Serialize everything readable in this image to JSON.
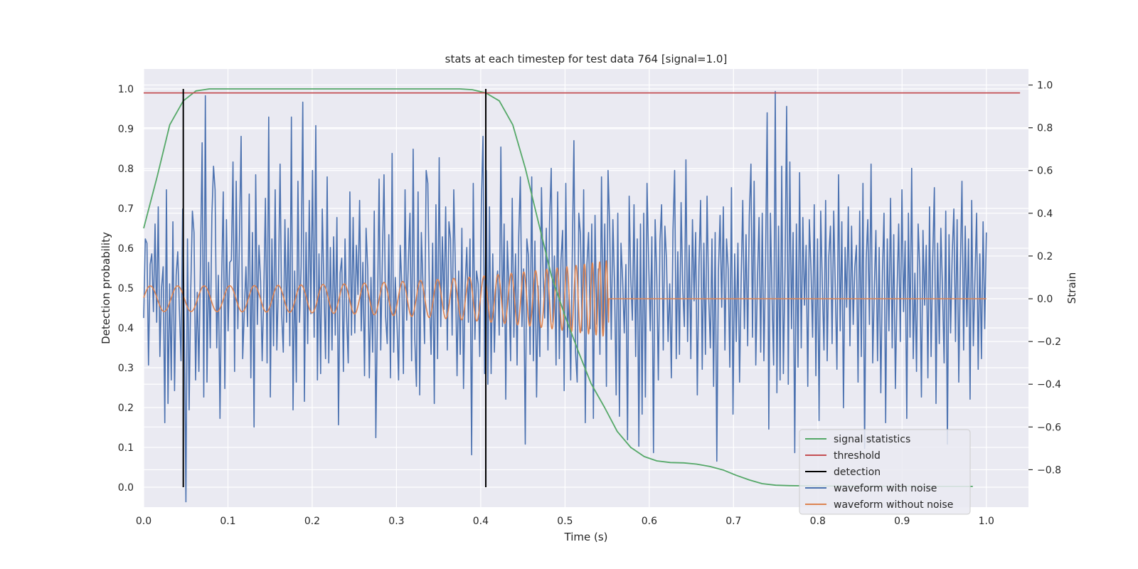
{
  "chart_data": {
    "type": "line",
    "title": "stats at each timestep for test data 764 [signal=1.0]",
    "xlabel": "Time (s)",
    "ylabel_left": "Detection probability",
    "ylabel_right": "Strain",
    "xlim": [
      0.0,
      1.05
    ],
    "ylim_left": [
      -0.05,
      1.05
    ],
    "ylim_right": [
      -0.975,
      1.075
    ],
    "x_ticks": [
      0.0,
      0.1,
      0.2,
      0.3,
      0.4,
      0.5,
      0.6,
      0.7,
      0.8,
      0.9,
      1.0
    ],
    "x_tick_labels": [
      "0.0",
      "0.1",
      "0.2",
      "0.3",
      "0.4",
      "0.5",
      "0.6",
      "0.7",
      "0.8",
      "0.9",
      "1.0"
    ],
    "y_left_ticks": [
      0.0,
      0.1,
      0.2,
      0.3,
      0.4,
      0.5,
      0.6,
      0.7,
      0.8,
      0.9,
      1.0
    ],
    "y_left_tick_labels": [
      "0.0",
      "0.1",
      "0.2",
      "0.3",
      "0.4",
      "0.5",
      "0.6",
      "0.7",
      "0.8",
      "0.9",
      "1.0"
    ],
    "y_right_ticks": [
      -0.8,
      -0.6,
      -0.4,
      -0.2,
      0.0,
      0.2,
      0.4,
      0.6,
      0.8,
      1.0
    ],
    "y_right_tick_labels": [
      "−0.8",
      "−0.6",
      "−0.4",
      "−0.2",
      "0.0",
      "0.2",
      "0.4",
      "0.6",
      "0.8",
      "1.0"
    ],
    "grid": true,
    "legend_position": "lower-right",
    "series": [
      {
        "name": "signal statistics",
        "axis": "left",
        "color": "#55a868",
        "x": [
          0.0,
          0.016,
          0.031,
          0.047,
          0.062,
          0.078,
          0.094,
          0.2,
          0.3,
          0.375,
          0.39,
          0.406,
          0.422,
          0.438,
          0.453,
          0.469,
          0.484,
          0.5,
          0.516,
          0.531,
          0.547,
          0.562,
          0.578,
          0.594,
          0.609,
          0.625,
          0.641,
          0.656,
          0.672,
          0.688,
          0.703,
          0.719,
          0.734,
          0.75,
          0.766,
          0.8,
          0.9,
          0.984
        ],
        "y": [
          0.65,
          0.78,
          0.91,
          0.97,
          0.995,
          1.0,
          1.0,
          1.0,
          1.0,
          1.0,
          0.998,
          0.99,
          0.97,
          0.91,
          0.8,
          0.66,
          0.53,
          0.43,
          0.34,
          0.26,
          0.2,
          0.14,
          0.1,
          0.077,
          0.066,
          0.062,
          0.061,
          0.058,
          0.052,
          0.043,
          0.03,
          0.018,
          0.009,
          0.005,
          0.004,
          0.003,
          0.002,
          0.002
        ]
      },
      {
        "name": "threshold",
        "axis": "left",
        "color": "#c44e52",
        "x": [
          0.0,
          1.04
        ],
        "y": [
          0.99,
          0.99
        ]
      },
      {
        "name": "detection",
        "axis": "left",
        "color": "#000000",
        "segments": [
          {
            "x": 0.047,
            "y0": 0.0,
            "y1": 1.0
          },
          {
            "x": 0.406,
            "y0": 0.0,
            "y1": 1.0
          }
        ]
      },
      {
        "name": "waveform with noise",
        "axis": "right",
        "color": "#4c72b0",
        "x_start": 0.0,
        "x_end": 1.0,
        "y": [
          -0.09,
          0.28,
          0.26,
          -0.31,
          0.16,
          0.21,
          -0.06,
          0.35,
          -0.11,
          0.43,
          -0.27,
          0.05,
          0.15,
          -0.58,
          0.51,
          -0.49,
          0.07,
          -0.38,
          0.36,
          -0.43,
          0.11,
          0.22,
          -0.05,
          -0.29,
          0.42,
          -0.12,
          -0.95,
          0.28,
          -0.52,
          0.04,
          0.41,
          0.31,
          -0.38,
          0.03,
          -0.34,
          0.18,
          0.73,
          -0.46,
          0.95,
          -0.39,
          0.17,
          -0.23,
          0.39,
          0.62,
          0.51,
          -0.23,
          0.11,
          -0.56,
          0.08,
          0.5,
          -0.42,
          0.37,
          -0.15,
          0.17,
          0.18,
          0.64,
          -0.34,
          0.55,
          -0.14,
          0.29,
          0.76,
          -0.28,
          -0.06,
          0.15,
          -0.13,
          0.49,
          -0.37,
          0.31,
          -0.6,
          0.58,
          -0.12,
          0.25,
          0.08,
          -0.29,
          0.03,
          0.47,
          -0.3,
          0.85,
          -0.46,
          0.28,
          -0.22,
          0.51,
          -0.24,
          0.07,
          0.63,
          -0.07,
          -0.25,
          0.37,
          -0.11,
          0.33,
          -0.22,
          0.85,
          -0.52,
          0.13,
          -0.39,
          0.55,
          -0.11,
          0.15,
          0.92,
          -0.48,
          0.31,
          -0.21,
          0.46,
          -0.07,
          0.6,
          -0.18,
          0.81,
          -0.38,
          0.21,
          -0.35,
          0.42,
          0.06,
          -0.28,
          0.57,
          -0.3,
          0.24,
          -0.24,
          0.29,
          -0.17,
          0.38,
          -0.59,
          0.12,
          0.19,
          -0.34,
          0.28,
          -0.08,
          -0.3,
          0.5,
          -0.17,
          0.38,
          -0.16,
          0.25,
          0.02,
          0.46,
          -0.15,
          0.17,
          -0.36,
          0.33,
          0.14,
          -0.37,
          0.1,
          -0.25,
          0.41,
          -0.65,
          -0.06,
          0.56,
          -0.24,
          0.19,
          0.58,
          -0.08,
          -0.21,
          0.3,
          -0.37,
          0.68,
          -0.25,
          0.1,
          -0.11,
          -0.38,
          0.25,
          0.06,
          -0.35,
          0.51,
          -0.1,
          0.17,
          0.4,
          -0.29,
          0.7,
          -0.19,
          -0.41,
          0.5,
          -0.45,
          0.31,
          0.08,
          -0.21,
          0.6,
          0.54,
          0.01,
          -0.26,
          0.26,
          -0.49,
          0.44,
          -0.28,
          0.66,
          -0.13,
          0.29,
          -0.05,
          0.43,
          -0.24,
          0.36,
          0.28,
          -0.17,
          0.51,
          0.13,
          -0.36,
          0.13,
          -0.26,
          0.33,
          -0.42,
          0.06,
          0.24,
          -0.11,
          0.28,
          -0.73,
          0.54,
          -0.19,
          0.13,
          0.07,
          -0.27,
          0.46,
          0.76,
          -0.35,
          0.6,
          -0.4,
          0.43,
          -0.35,
          0.21,
          -0.25,
          0.06,
          0.13,
          -0.17,
          0.71,
          -0.13,
          0.35,
          -0.47,
          0.27,
          0.04,
          -0.29,
          0.47,
          -0.18,
          0.21,
          -0.31,
          0.29,
          0.57,
          -0.13,
          0.14,
          -0.68,
          0.28,
          0.2,
          -0.26,
          0.57,
          -0.29,
          0.27,
          -0.46,
          0.06,
          -0.27,
          0.52,
          0.11,
          -0.09,
          0.33,
          -0.24,
          0.36,
          0.61,
          -0.11,
          0.2,
          -0.31,
          0.5,
          -0.28,
          0.18,
          0.32,
          -0.43,
          0.54,
          -0.18,
          0.02,
          -0.38,
          0.23,
          0.74,
          -0.25,
          -0.39,
          0.4,
          0.3,
          -0.15,
          0.51,
          -0.58,
          0.16,
          0.31,
          -0.14,
          0.35,
          -0.56,
          0.39,
          -0.12,
          0.14,
          -0.26,
          0.57,
          -0.16,
          0.35,
          -0.41,
          0.6,
          0.34,
          -0.19,
          0.37,
          0.07,
          -0.45,
          0.4,
          -0.55,
          0.26,
          0.09,
          -0.16,
          0.16,
          -0.66,
          0.48,
          0.1,
          -0.1,
          0.44,
          -0.27,
          0.28,
          -0.69,
          0.35,
          -0.54,
          0.4,
          -0.46,
          0.54,
          0.19,
          -0.15,
          0.29,
          -0.72,
          0.37,
          0.1,
          -0.38,
          0.27,
          0.44,
          -0.24,
          0.34,
          0.18,
          -0.2,
          0.07,
          -0.37,
          0.32,
          0.6,
          -0.28,
          0.22,
          -0.26,
          0.45,
          0.05,
          -0.13,
          0.65,
          -0.2,
          0.25,
          -0.28,
          0.37,
          -0.01,
          0.31,
          -0.45,
          0.15,
          0.46,
          -0.33,
          0.26,
          -0.26,
          0.48,
          0.01,
          -0.23,
          0.28,
          -0.41,
          0.31,
          -0.76,
          0.13,
          0.39,
          -0.04,
          0.43,
          -0.24,
          0.28,
          0.14,
          -0.32,
          0.52,
          -0.54,
          0.21,
          -0.2,
          0.26,
          -0.39,
          0.1,
          0.46,
          -0.14,
          0.3,
          -0.22,
          0.39,
          0.63,
          -0.18,
          0.55,
          -0.31,
          0.08,
          0.38,
          -0.25,
          0.4,
          -0.29,
          0.16,
          0.87,
          -0.61,
          0.4,
          0.02,
          -0.31,
          0.97,
          -0.44,
          0.34,
          -0.38,
          0.62,
          -0.35,
          0.12,
          0.9,
          -0.4,
          0.64,
          -0.14,
          0.31,
          -0.72,
          0.35,
          -0.32,
          0.59,
          -0.23,
          0.38,
          -0.03,
          0.25,
          -0.41,
          0.37,
          0.14,
          -0.18,
          0.44,
          -0.36,
          0.28,
          -0.57,
          0.41,
          0.06,
          -0.24,
          0.46,
          -0.29,
          0.2,
          0.34,
          -0.21,
          0.41,
          0.03,
          -0.33,
          0.58,
          -0.15,
          0.36,
          -0.51,
          0.24,
          -0.04,
          0.43,
          -0.22,
          0.34,
          -0.12,
          0.15,
          0.25,
          -0.39,
          0.41,
          -0.27,
          0.54,
          -0.7,
          0.18,
          0.37,
          -0.12,
          0.63,
          -0.3,
          0.05,
          0.32,
          -0.29,
          0.24,
          -0.44,
          0.13,
          0.4,
          -0.58,
          0.28,
          -0.15,
          0.47,
          -0.23,
          0.3,
          -0.42,
          0.03,
          0.35,
          -0.2,
          0.51,
          -0.06,
          0.27,
          -0.56,
          0.4,
          -0.18,
          0.61,
          -0.28,
          0.12,
          -0.34,
          0.35,
          0.14,
          -0.46,
          0.32,
          -0.03,
          0.25,
          -0.37,
          0.43,
          -0.27,
          0.19,
          0.52,
          -0.49,
          0.26,
          -0.21,
          0.33,
          0.05,
          -0.3,
          0.41,
          -0.68,
          0.3,
          -0.16,
          0.21,
          0.42,
          -0.2,
          0.37,
          -0.39,
          0.14,
          0.55,
          -0.24,
          0.34,
          -0.13,
          0.28,
          -0.47,
          0.46,
          -0.22,
          0.1,
          0.4,
          -0.33,
          0.21,
          -0.28,
          0.36,
          -0.14,
          0.31
        ]
      },
      {
        "name": "waveform without noise",
        "axis": "right",
        "color": "#dd8452",
        "x_start": 0.0,
        "x_end": 1.0,
        "chirp_end": 0.552,
        "f0_hz": 30,
        "amplitude_start": 0.06,
        "amplitude_end": 0.18
      }
    ]
  }
}
